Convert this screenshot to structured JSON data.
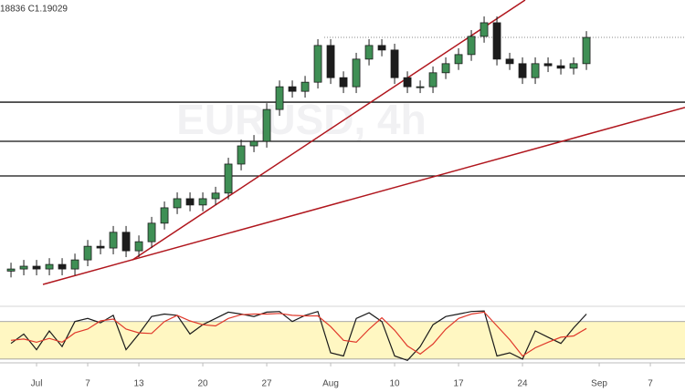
{
  "chart_data": {
    "type": "candlestick",
    "ohlc_text": "18836 C1.19029",
    "watermark": "EURUSD, 4h",
    "x": [
      -2,
      -1,
      0,
      1,
      2,
      3,
      4,
      5,
      6,
      7,
      8,
      9,
      10,
      11,
      12,
      13,
      14,
      15,
      16,
      17,
      18,
      19,
      20,
      21,
      22,
      23,
      24,
      25,
      26,
      27,
      28,
      29,
      30,
      31,
      32,
      33,
      34,
      35,
      36,
      37,
      38,
      39,
      40,
      41,
      42,
      43
    ],
    "open": [
      1.1235,
      1.1241,
      1.1249,
      1.1241,
      1.1254,
      1.1241,
      1.1267,
      1.1306,
      1.1301,
      1.1346,
      1.1293,
      1.1319,
      1.1372,
      1.1416,
      1.1442,
      1.1424,
      1.1442,
      1.1458,
      1.1541,
      1.1593,
      1.1606,
      1.1697,
      1.1762,
      1.1749,
      1.1775,
      1.188,
      1.1788,
      1.1762,
      1.1841,
      1.188,
      1.1867,
      1.1788,
      1.1762,
      1.1762,
      1.1802,
      1.1828,
      1.1854,
      1.1906,
      1.1945,
      1.1841,
      1.1828,
      1.1788,
      1.1828,
      1.1822,
      1.1815,
      1.1828
    ],
    "high": [
      1.1259,
      1.1267,
      1.1267,
      1.1272,
      1.1272,
      1.1285,
      1.1324,
      1.1324,
      1.1364,
      1.1364,
      1.1337,
      1.139,
      1.1434,
      1.146,
      1.146,
      1.146,
      1.1476,
      1.1559,
      1.1611,
      1.1624,
      1.1715,
      1.178,
      1.178,
      1.1793,
      1.1898,
      1.1898,
      1.1806,
      1.1859,
      1.1898,
      1.1898,
      1.1885,
      1.1806,
      1.178,
      1.182,
      1.1846,
      1.1872,
      1.1924,
      1.1963,
      1.1963,
      1.1859,
      1.1846,
      1.1846,
      1.1846,
      1.184,
      1.1846,
      1.1921
    ],
    "low": [
      1.1217,
      1.1223,
      1.1223,
      1.1223,
      1.1223,
      1.1223,
      1.1249,
      1.1283,
      1.1283,
      1.1275,
      1.1275,
      1.1301,
      1.1354,
      1.1398,
      1.1406,
      1.1406,
      1.1424,
      1.144,
      1.1523,
      1.1575,
      1.1588,
      1.1679,
      1.1731,
      1.1731,
      1.1757,
      1.177,
      1.1744,
      1.1744,
      1.1823,
      1.1849,
      1.177,
      1.1744,
      1.1744,
      1.1744,
      1.1784,
      1.181,
      1.1836,
      1.1888,
      1.1823,
      1.181,
      1.177,
      1.177,
      1.1804,
      1.1797,
      1.1797,
      1.181
    ],
    "close": [
      1.1241,
      1.1249,
      1.1241,
      1.1254,
      1.1241,
      1.1267,
      1.1306,
      1.1301,
      1.1346,
      1.1293,
      1.1319,
      1.1372,
      1.1416,
      1.1442,
      1.1424,
      1.1442,
      1.1458,
      1.1541,
      1.1593,
      1.1606,
      1.1697,
      1.1762,
      1.1749,
      1.1775,
      1.188,
      1.1788,
      1.1762,
      1.1841,
      1.188,
      1.1867,
      1.1788,
      1.1762,
      1.1762,
      1.1802,
      1.1828,
      1.1854,
      1.1906,
      1.1945,
      1.1841,
      1.1828,
      1.1788,
      1.1828,
      1.1822,
      1.1815,
      1.1828,
      1.1903
    ],
    "up_color": "#3f8f55",
    "down_color": "#1c1c1c",
    "xlim": [
      -2.86,
      50.71
    ],
    "ylim": [
      1.115,
      1.201
    ],
    "xticks": [
      {
        "value": 0,
        "label": "Jul"
      },
      {
        "value": 4,
        "label": "7"
      },
      {
        "value": 8,
        "label": "13"
      },
      {
        "value": 13,
        "label": "20"
      },
      {
        "value": 18,
        "label": "27"
      },
      {
        "value": 23,
        "label": "Aug"
      },
      {
        "value": 28,
        "label": "10"
      },
      {
        "value": 33,
        "label": "17"
      },
      {
        "value": 38,
        "label": "24"
      },
      {
        "value": 44,
        "label": "Sep"
      },
      {
        "value": 48,
        "label": "7"
      }
    ],
    "hlines": [
      1.1718,
      1.1606,
      1.1507
    ],
    "hline_color": "#111111",
    "trendlines": [
      {
        "x": [
          0.5,
          50.71
        ],
        "y": [
          1.1197,
          1.1703
        ]
      },
      {
        "x": [
          7.5,
          38.21
        ],
        "y": [
          1.1267,
          1.201
        ]
      }
    ],
    "trend_color": "#b0161d",
    "oscillator": {
      "ylim": [
        14,
        100
      ],
      "band": [
        20,
        80
      ],
      "band_color": "#fff7c2",
      "series": [
        {
          "color": "#1a1a1a",
          "values": [
            45,
            60,
            35,
            65,
            40,
            80,
            85,
            78,
            90,
            35,
            60,
            88,
            92,
            90,
            60,
            75,
            85,
            95,
            92,
            88,
            95,
            96,
            80,
            90,
            96,
            30,
            25,
            85,
            94,
            80,
            25,
            18,
            40,
            75,
            88,
            92,
            96,
            97,
            25,
            30,
            20,
            65,
            55,
            45,
            70,
            92
          ]
        },
        {
          "color": "#e0392b",
          "values": [
            50,
            52,
            47,
            53,
            47,
            62,
            68,
            81,
            84,
            68,
            62,
            61,
            80,
            90,
            81,
            75,
            73,
            85,
            91,
            92,
            92,
            93,
            90,
            89,
            89,
            72,
            50,
            47,
            68,
            86,
            66,
            41,
            28,
            44,
            68,
            85,
            92,
            95,
            73,
            51,
            25,
            38,
            47,
            55,
            57,
            69
          ]
        }
      ]
    }
  }
}
